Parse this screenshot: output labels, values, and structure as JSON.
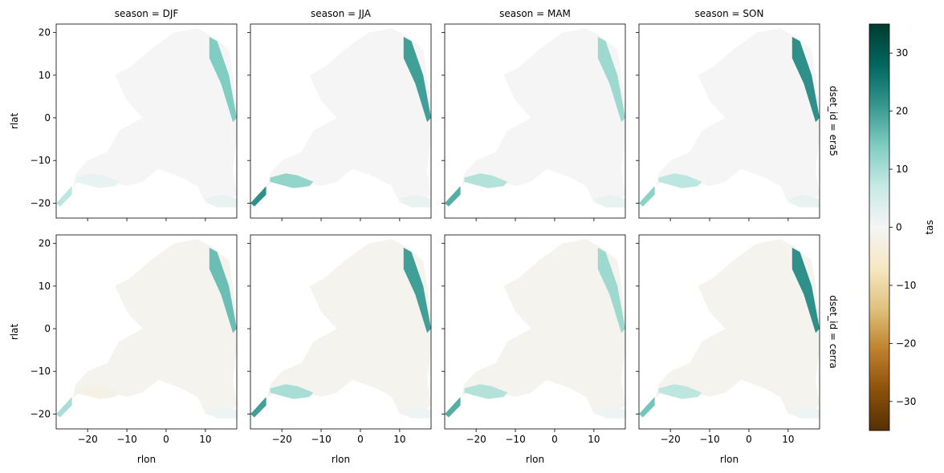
{
  "chart_data": {
    "type": "heatmap",
    "variable": "tas",
    "x_label": "rlon",
    "y_label": "rlat",
    "x_range": [
      -28,
      18
    ],
    "y_range": [
      -23.5,
      22
    ],
    "x_ticks": [
      -20,
      -10,
      0,
      10
    ],
    "x_tick_labels": [
      "−20",
      "−10",
      "0",
      "10"
    ],
    "y_ticks": [
      -20,
      -10,
      0,
      10,
      20
    ],
    "y_tick_labels": [
      "−20",
      "−10",
      "0",
      "10",
      "20"
    ],
    "col_facet": "season",
    "row_facet": "dset_id",
    "col_titles": [
      "season = DJF",
      "season = JJA",
      "season = MAM",
      "season = SON"
    ],
    "row_titles": [
      "dset_id = era5",
      "dset_id = cerra"
    ],
    "colorbar": {
      "label": "tas",
      "range": [
        -35,
        35
      ],
      "ticks": [
        -30,
        -20,
        -10,
        0,
        10,
        20,
        30
      ],
      "tick_labels": [
        "−30",
        "−20",
        "−10",
        "0",
        "10",
        "20",
        "30"
      ],
      "colormap": "BrBG",
      "colors": [
        "#543005",
        "#8c510a",
        "#bf812d",
        "#dfc27d",
        "#f6e8c3",
        "#f5f5f5",
        "#c7eae5",
        "#80cdc1",
        "#35978f",
        "#01665e",
        "#003c30"
      ]
    },
    "panels": [
      {
        "season": "DJF",
        "dset_id": "era5",
        "east_strip": 14,
        "south_coast": 2,
        "sw_corner": 8,
        "land": 0
      },
      {
        "season": "JJA",
        "dset_id": "era5",
        "east_strip": 20,
        "south_coast": 12,
        "sw_corner": 22,
        "land": 0
      },
      {
        "season": "MAM",
        "dset_id": "era5",
        "east_strip": 11,
        "south_coast": 9,
        "sw_corner": 18,
        "land": 0
      },
      {
        "season": "SON",
        "dset_id": "era5",
        "east_strip": 22,
        "south_coast": 8,
        "sw_corner": 13,
        "land": 0
      },
      {
        "season": "DJF",
        "dset_id": "cerra",
        "east_strip": 16,
        "south_coast": -2,
        "sw_corner": 10,
        "land": -1
      },
      {
        "season": "JJA",
        "dset_id": "cerra",
        "east_strip": 20,
        "south_coast": 10,
        "sw_corner": 20,
        "land": -1
      },
      {
        "season": "MAM",
        "dset_id": "cerra",
        "east_strip": 11,
        "south_coast": 9,
        "sw_corner": 18,
        "land": -1
      },
      {
        "season": "SON",
        "dset_id": "cerra",
        "east_strip": 22,
        "south_coast": 8,
        "sw_corner": 15,
        "land": -1
      }
    ]
  }
}
